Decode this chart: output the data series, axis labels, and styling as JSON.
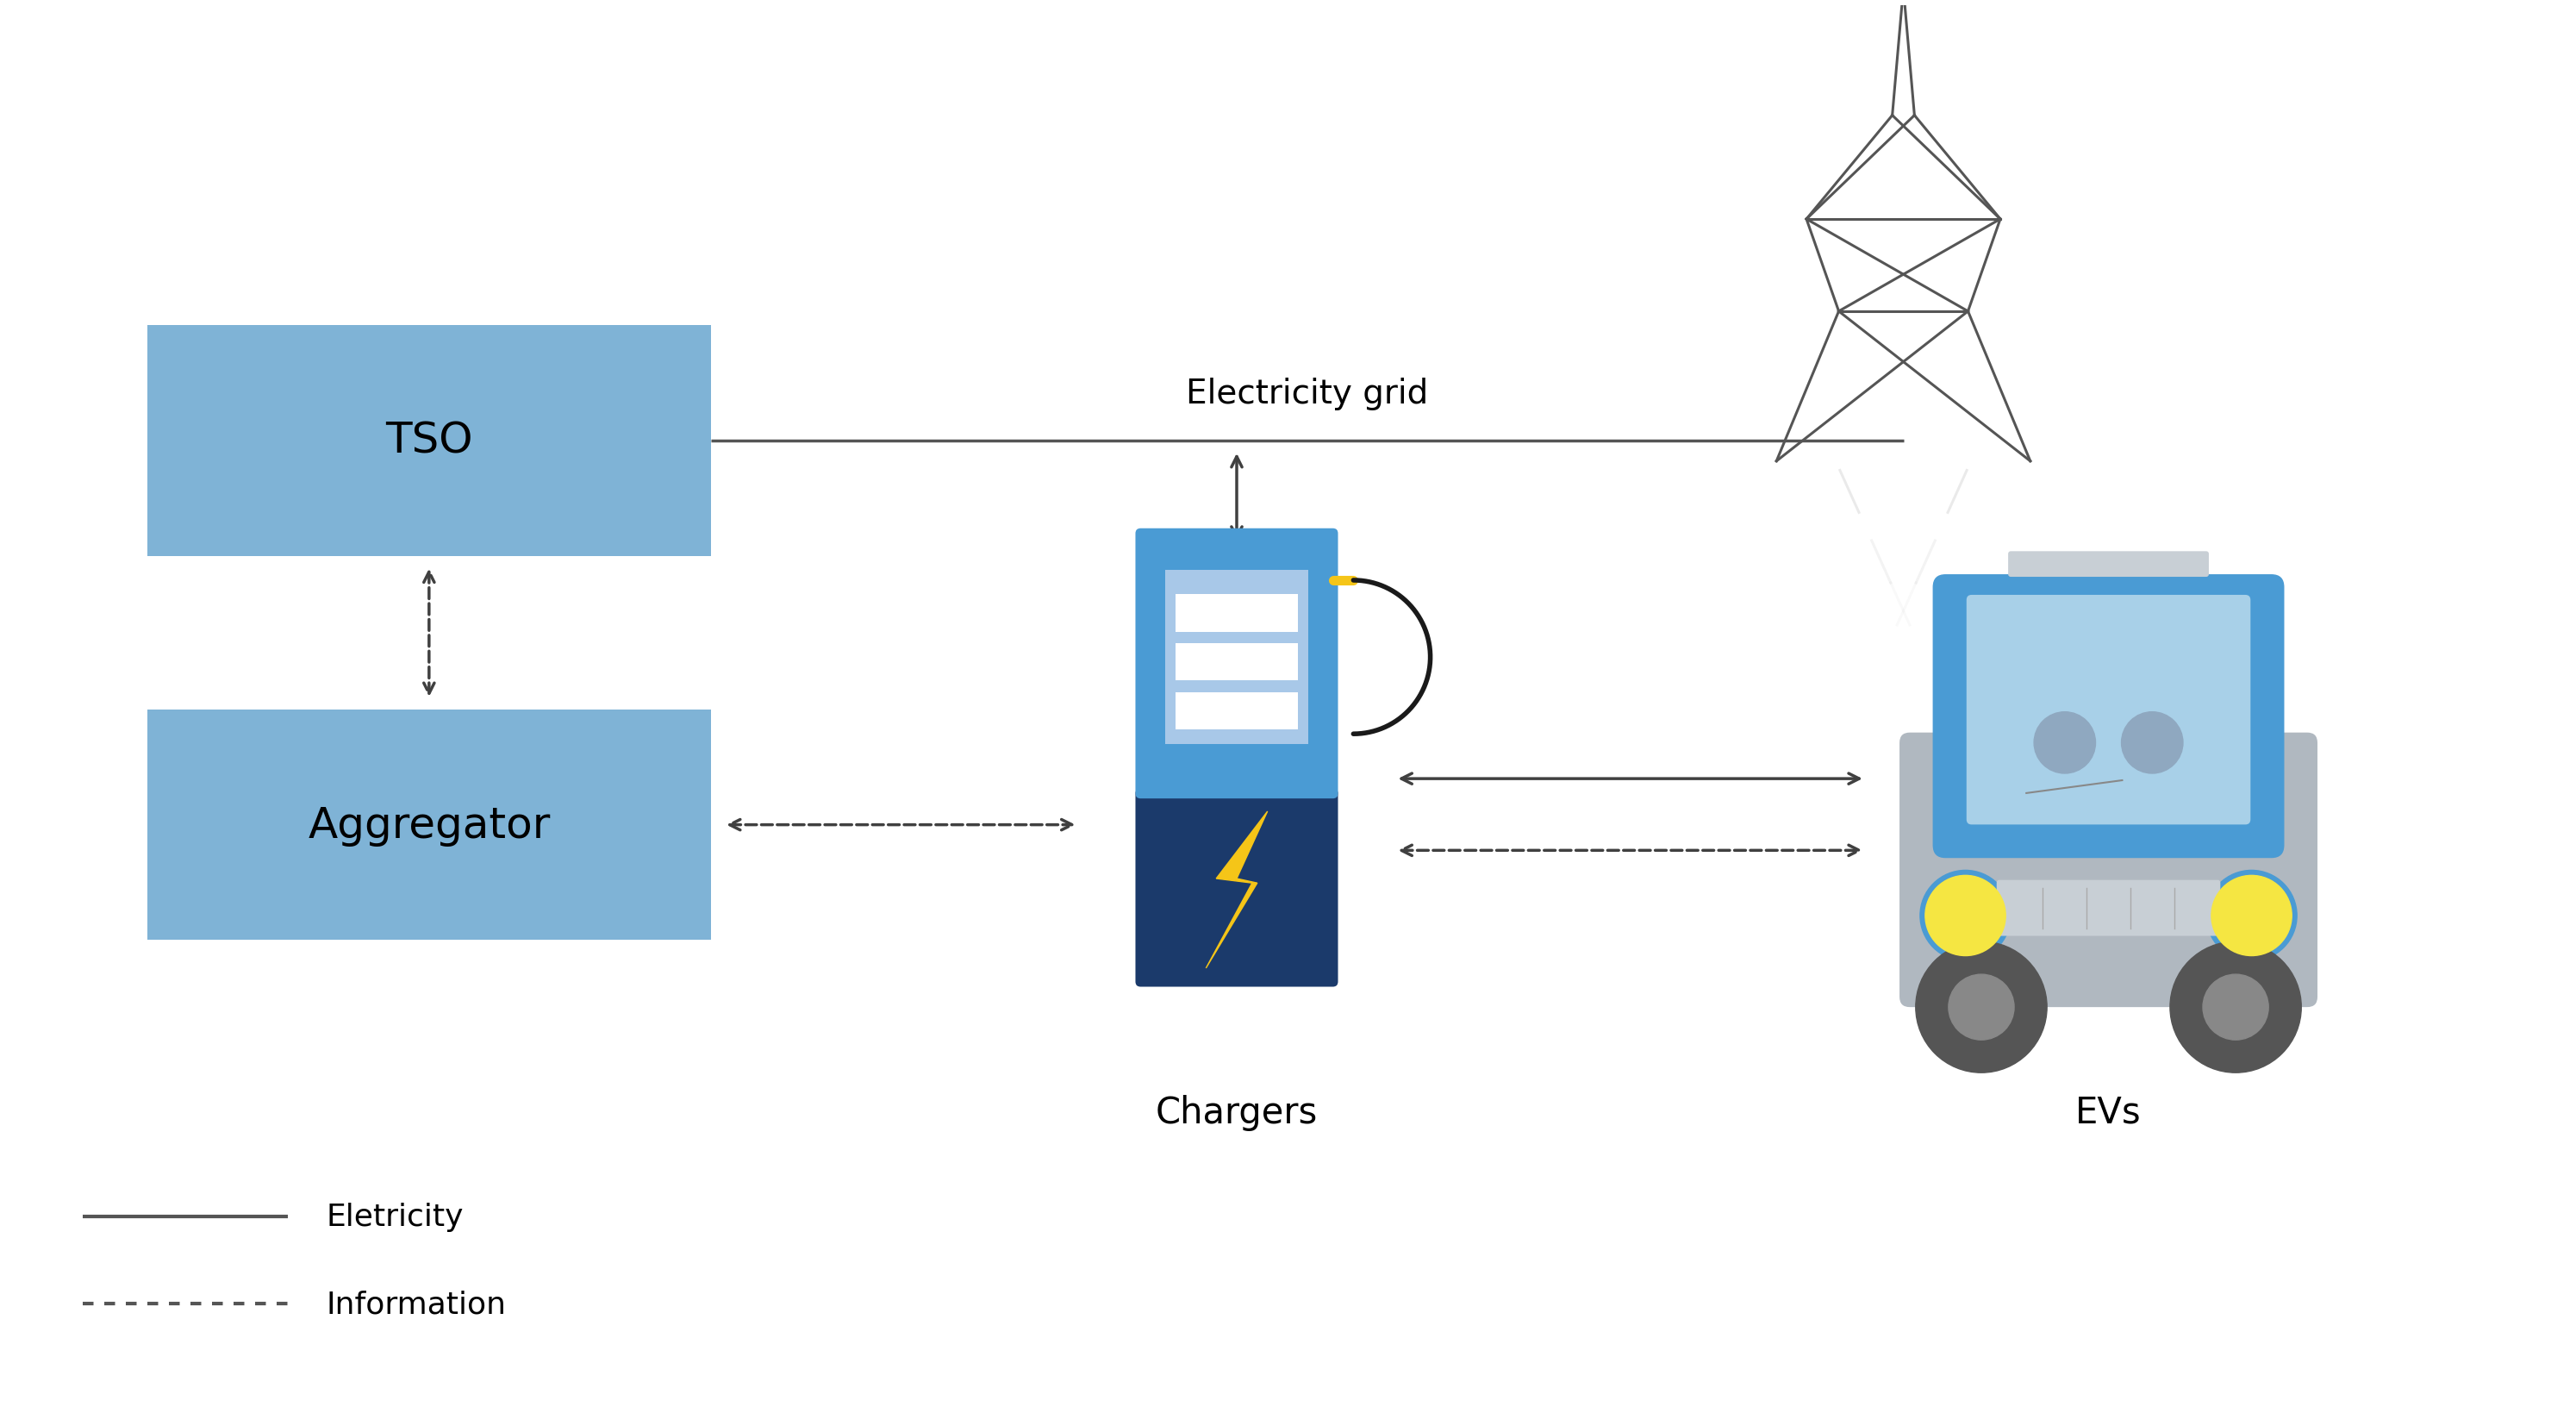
{
  "bg_color": "#ffffff",
  "box_color": "#7fb3d6",
  "box_text_color": "#000000",
  "tso_label": "TSO",
  "aggregator_label": "Aggregator",
  "chargers_label": "Chargers",
  "evs_label": "EVs",
  "grid_label": "Electricity grid",
  "legend_electricity": "Eletricity",
  "legend_information": "Information",
  "arrow_color": "#404040",
  "line_color": "#555555",
  "font_size_box": 36,
  "font_size_label": 30,
  "font_size_grid": 28
}
